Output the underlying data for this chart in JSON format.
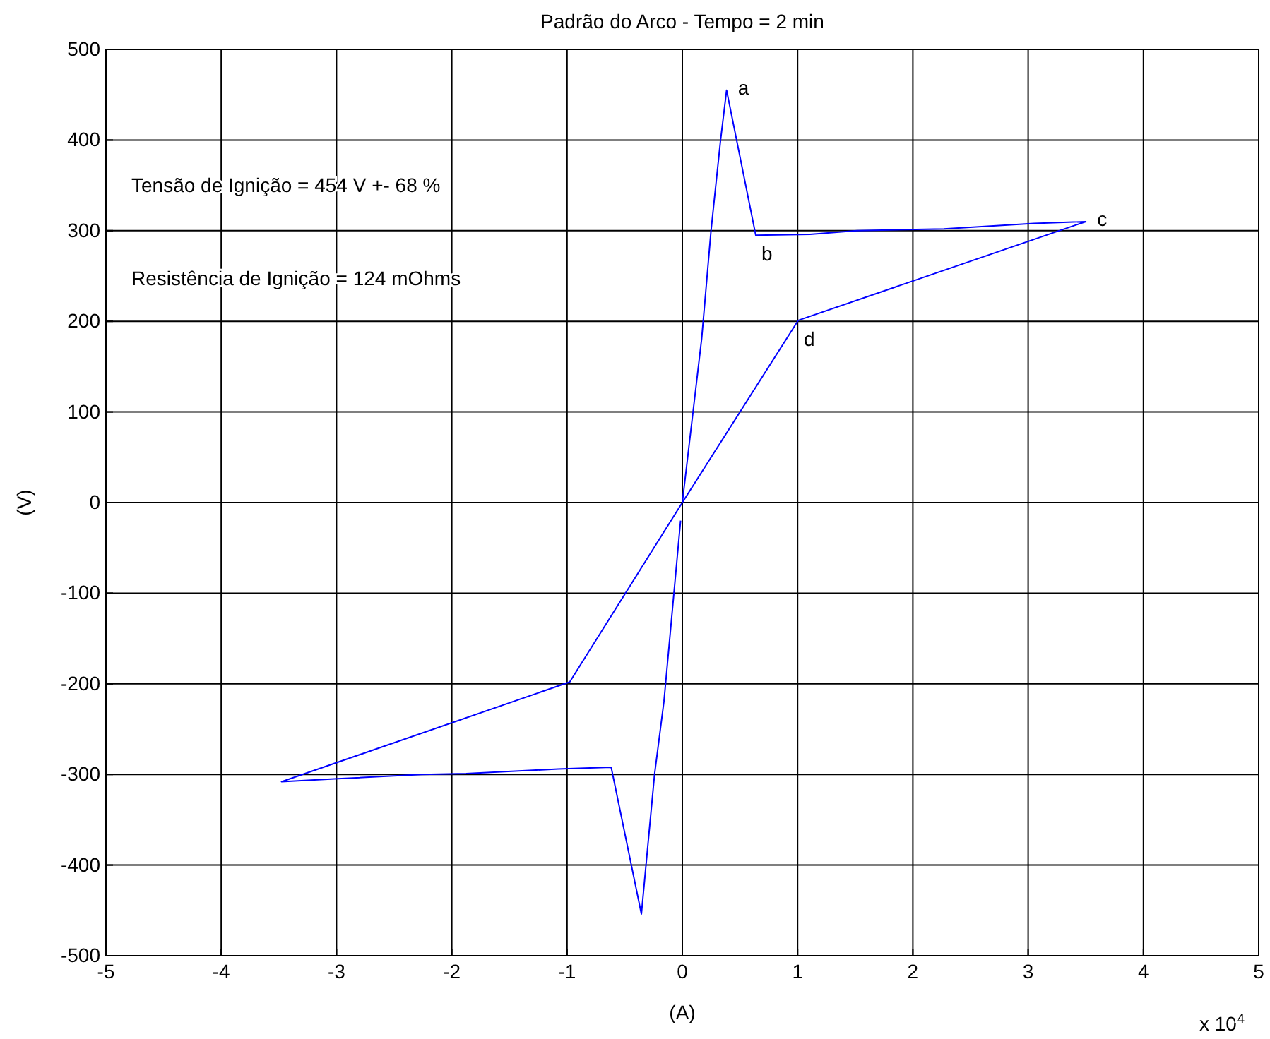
{
  "chart_data": {
    "type": "line",
    "title": "Padrão do Arco - Tempo = 2 min",
    "xlabel": "(A)",
    "ylabel": "(V)",
    "series": [
      {
        "color": "#0000ff",
        "x": [
          0,
          0.168,
          0.249,
          0.331,
          0.384,
          0.637,
          1.107,
          1.516,
          2.27,
          3.05,
          3.5,
          1.005,
          0,
          -0.977,
          -3.477,
          -3.02,
          -2.26,
          -1.875,
          -1.078,
          -0.617,
          -0.355,
          -0.241,
          -0.159,
          -0.015
        ],
        "values": [
          0,
          181,
          300,
          399,
          455,
          295,
          296,
          300,
          302,
          308,
          310,
          201,
          0,
          -198,
          -308,
          -305,
          -300,
          -299,
          -294,
          -292,
          -454,
          -300,
          -219,
          -20
        ]
      }
    ],
    "xlim": [
      -5,
      5
    ],
    "xticks": [
      -5,
      -4,
      -3,
      -2,
      -1,
      0,
      1,
      2,
      3,
      4,
      5
    ],
    "ylim": [
      -500,
      500
    ],
    "yticks": [
      -500,
      -400,
      -300,
      -200,
      -100,
      0,
      100,
      200,
      300,
      400,
      500
    ],
    "grid": true,
    "marker": "none",
    "line_style": "solid",
    "annotations": [
      "Tensão de Ignição = 454 V +- 68 %",
      "Resistência de Ignição = 124 mOhms",
      "x 10$^{4}$",
      {
        "text": "a",
        "x": 0.384,
        "y": 455
      },
      {
        "text": "b",
        "x": 0.637,
        "y": 295
      },
      {
        "text": "c",
        "x": 3.5,
        "y": 310
      },
      {
        "text": "d",
        "x": 1.005,
        "y": 201
      }
    ]
  }
}
